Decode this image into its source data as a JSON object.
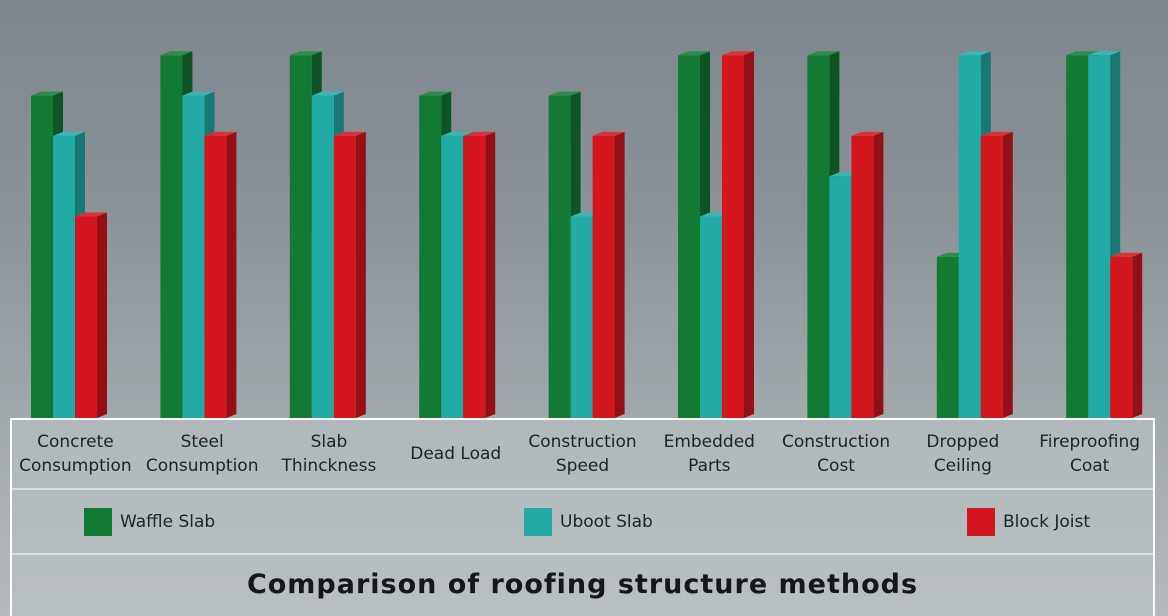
{
  "chart_data": {
    "type": "bar",
    "title": "Comparison of roofing structure methods",
    "categories": [
      "Concrete\nConsumption",
      "Steel\nConsumption",
      "Slab\nThinckness",
      "Dead Load",
      "Construction\nSpeed",
      "Embedded\nParts",
      "Construction\nCost",
      "Dropped\nCeiling",
      "Fireproofing\nCoat"
    ],
    "series": [
      {
        "name": "Waffle Slab",
        "color": "#137a34",
        "values": [
          4,
          4.5,
          4.5,
          4,
          4,
          4.5,
          4.5,
          2,
          4.5
        ]
      },
      {
        "name": "Uboot Slab",
        "color": "#22aba6",
        "values": [
          3.5,
          4,
          4,
          3.5,
          2.5,
          2.5,
          3,
          4.5,
          4.5
        ]
      },
      {
        "name": "Block Joist",
        "color": "#d4161f",
        "values": [
          2.5,
          3.5,
          3.5,
          3.5,
          3.5,
          4.5,
          3.5,
          3.5,
          2
        ]
      }
    ],
    "ylim": [
      0,
      5
    ],
    "grid": false,
    "legend_position": "bottom"
  }
}
